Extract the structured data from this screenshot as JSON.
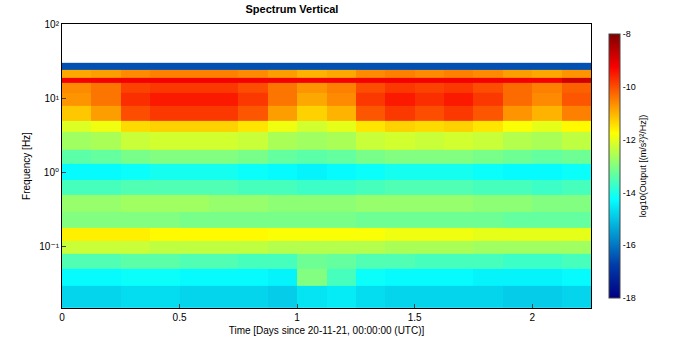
{
  "chart_data": {
    "type": "heatmap",
    "title": "Spectrum Vertical",
    "x_label": "Time [Days since 20-11-21, 00:00:00 (UTC)]",
    "y_label": "Frequency [Hz]",
    "x": [
      0,
      0.125,
      0.25,
      0.375,
      0.5,
      0.625,
      0.75,
      0.875,
      1,
      1.125,
      1.25,
      1.375,
      1.5,
      1.625,
      1.75,
      1.875,
      2,
      2.125,
      2.25
    ],
    "y": [
      0.015,
      0.03,
      0.05,
      0.08,
      0.12,
      0.18,
      0.3,
      0.5,
      0.8,
      1.3,
      2,
      3.5,
      5,
      8,
      12,
      16,
      19,
      24,
      30
    ],
    "cells": [
      [
        -14.8,
        -14.8,
        -14.7,
        -14.7,
        -14.8,
        -14.8,
        -14.8,
        -14.9,
        -14.6,
        -14.5,
        -14.7,
        -14.8,
        -14.8,
        -14.8,
        -14.8,
        -14.9,
        -14.9,
        -14.8
      ],
      [
        -14.3,
        -14.3,
        -14.2,
        -14.2,
        -14.3,
        -14.3,
        -14.3,
        -14.4,
        -13.0,
        -13.6,
        -14.2,
        -14.3,
        -14.3,
        -14.3,
        -14.4,
        -14.4,
        -14.4,
        -14.3
      ],
      [
        -13.5,
        -13.5,
        -13.4,
        -13.4,
        -13.5,
        -13.5,
        -13.6,
        -13.6,
        -13.2,
        -13.3,
        -13.5,
        -13.5,
        -13.6,
        -13.6,
        -13.6,
        -13.7,
        -13.7,
        -13.6
      ],
      [
        -12.3,
        -12.3,
        -12.3,
        -12.4,
        -12.4,
        -12.4,
        -12.4,
        -12.5,
        -12.5,
        -12.5,
        -12.5,
        -12.6,
        -12.6,
        -12.6,
        -12.7,
        -12.7,
        -12.7,
        -12.7
      ],
      [
        -11.6,
        -11.6,
        -11.6,
        -11.7,
        -11.7,
        -11.7,
        -11.7,
        -11.8,
        -11.8,
        -11.8,
        -11.8,
        -11.9,
        -11.9,
        -11.9,
        -12.0,
        -12.0,
        -12.0,
        -12.0
      ],
      [
        -13.0,
        -13.0,
        -13.0,
        -13.0,
        -13.1,
        -13.1,
        -13.1,
        -13.1,
        -13.1,
        -13.1,
        -13.2,
        -13.2,
        -13.2,
        -13.2,
        -13.2,
        -13.3,
        -13.3,
        -13.3
      ],
      [
        -12.8,
        -12.8,
        -12.7,
        -12.7,
        -12.7,
        -12.8,
        -12.8,
        -12.9,
        -12.9,
        -12.9,
        -12.8,
        -12.8,
        -12.8,
        -12.8,
        -12.9,
        -12.9,
        -13.0,
        -13.0
      ],
      [
        -13.6,
        -13.6,
        -13.5,
        -13.5,
        -13.5,
        -13.5,
        -13.6,
        -13.6,
        -13.7,
        -13.7,
        -13.6,
        -13.5,
        -13.5,
        -13.5,
        -13.6,
        -13.6,
        -13.7,
        -13.6
      ],
      [
        -14.3,
        -14.3,
        -14.2,
        -14.1,
        -14.1,
        -14.1,
        -14.2,
        -14.3,
        -14.4,
        -14.3,
        -14.2,
        -14.1,
        -14.1,
        -14.1,
        -14.2,
        -14.3,
        -14.3,
        -14.2
      ],
      [
        -13.4,
        -13.3,
        -13.1,
        -13.0,
        -13.0,
        -13.0,
        -13.1,
        -13.3,
        -13.4,
        -13.3,
        -13.1,
        -13.0,
        -13.0,
        -13.0,
        -13.1,
        -13.2,
        -13.3,
        -13.2
      ],
      [
        -12.7,
        -12.6,
        -12.3,
        -12.2,
        -12.2,
        -12.2,
        -12.3,
        -12.6,
        -12.7,
        -12.6,
        -12.3,
        -12.2,
        -12.3,
        -12.2,
        -12.3,
        -12.5,
        -12.6,
        -12.4
      ],
      [
        -12.1,
        -11.9,
        -11.4,
        -11.3,
        -11.3,
        -11.3,
        -11.5,
        -11.9,
        -12.2,
        -12.0,
        -11.5,
        -11.3,
        -11.4,
        -11.3,
        -11.5,
        -11.8,
        -12.0,
        -11.7
      ],
      [
        -11.2,
        -10.8,
        -10.0,
        -9.8,
        -9.8,
        -9.8,
        -10.1,
        -10.8,
        -11.3,
        -11.0,
        -10.1,
        -9.8,
        -10.0,
        -9.8,
        -10.1,
        -10.7,
        -11.0,
        -10.5
      ],
      [
        -10.7,
        -10.4,
        -9.7,
        -9.5,
        -9.5,
        -9.5,
        -9.8,
        -10.4,
        -10.9,
        -10.6,
        -9.8,
        -9.5,
        -9.7,
        -9.5,
        -9.8,
        -10.3,
        -10.6,
        -10.1
      ],
      [
        -10.6,
        -10.4,
        -9.9,
        -9.8,
        -9.8,
        -9.8,
        -10.0,
        -10.4,
        -10.7,
        -10.5,
        -10.0,
        -9.8,
        -9.9,
        -9.8,
        -10.0,
        -10.3,
        -10.5,
        -10.2
      ],
      [
        -9.2,
        -9.2,
        -9.2,
        -9.2,
        -9.2,
        -9.2,
        -9.2,
        -9.2,
        -9.2,
        -9.2,
        -9.2,
        -9.2,
        -9.2,
        -9.2,
        -9.2,
        -9.2,
        -9.2,
        -8.8
      ],
      [
        -10.9,
        -10.8,
        -10.6,
        -10.5,
        -10.5,
        -10.5,
        -10.6,
        -10.8,
        -11.0,
        -10.9,
        -10.6,
        -10.5,
        -10.6,
        -10.5,
        -10.6,
        -10.8,
        -10.9,
        -10.7
      ],
      [
        -16.5,
        -16.5,
        -16.5,
        -16.5,
        -16.5,
        -16.5,
        -16.5,
        -16.5,
        -16.5,
        -16.5,
        -16.5,
        -16.5,
        -16.5,
        -16.5,
        -16.5,
        -16.5,
        -16.5,
        -16.5
      ]
    ],
    "color": "jet",
    "xlim": [
      0,
      2.25
    ],
    "xticks": [
      0,
      0.5,
      1,
      1.5,
      2
    ],
    "ylim": [
      0.015,
      100
    ],
    "yticks": [
      {
        "value": 0.1,
        "label": "10⁻¹"
      },
      {
        "value": 1,
        "label": "10⁰"
      },
      {
        "value": 10,
        "label": "10¹"
      },
      {
        "value": 100,
        "label": "10²"
      }
    ],
    "log": "y",
    "grid": false,
    "colorbar_label": "log10(Output [(m/s²)²/Hz])",
    "colorbar_range": [
      -18,
      -8
    ],
    "colorbar_ticks": [
      -8,
      -10,
      -12,
      -14,
      -16,
      -18
    ]
  }
}
